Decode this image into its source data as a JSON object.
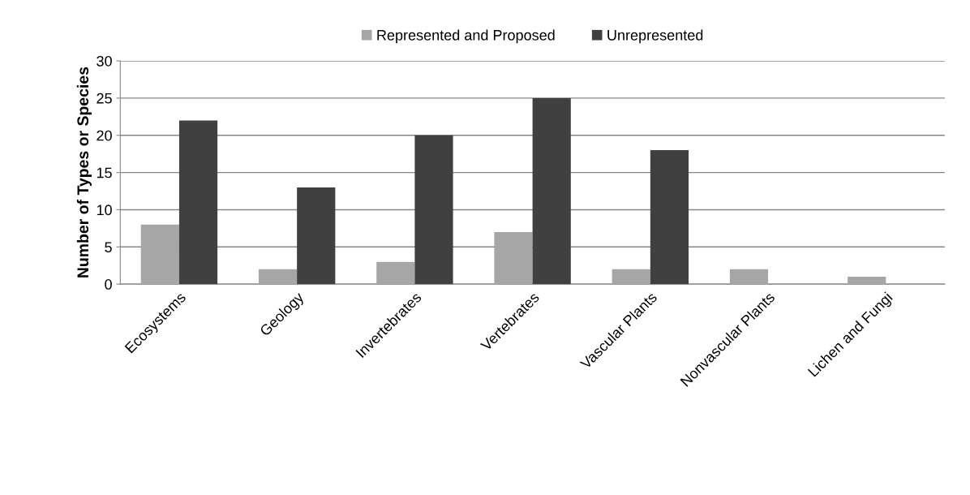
{
  "chart_data": {
    "type": "bar",
    "ylabel": "Number of Types or Species",
    "categories": [
      "Ecosystems",
      "Geology",
      "Invertebrates",
      "Vertebrates",
      "Vascular Plants",
      "Nonvascular Plants",
      "Lichen and Fungi"
    ],
    "series": [
      {
        "name": "Represented and Proposed",
        "color": "#a6a6a6",
        "values": [
          8,
          2,
          3,
          7,
          2,
          2,
          1
        ]
      },
      {
        "name": "Unrepresented",
        "color": "#404040",
        "values": [
          22,
          13,
          20,
          25,
          18,
          0,
          0
        ]
      }
    ],
    "ylim": [
      0,
      30
    ],
    "yticks": [
      0,
      5,
      10,
      15,
      20,
      25,
      30
    ],
    "grid": "y",
    "legend": "top"
  }
}
